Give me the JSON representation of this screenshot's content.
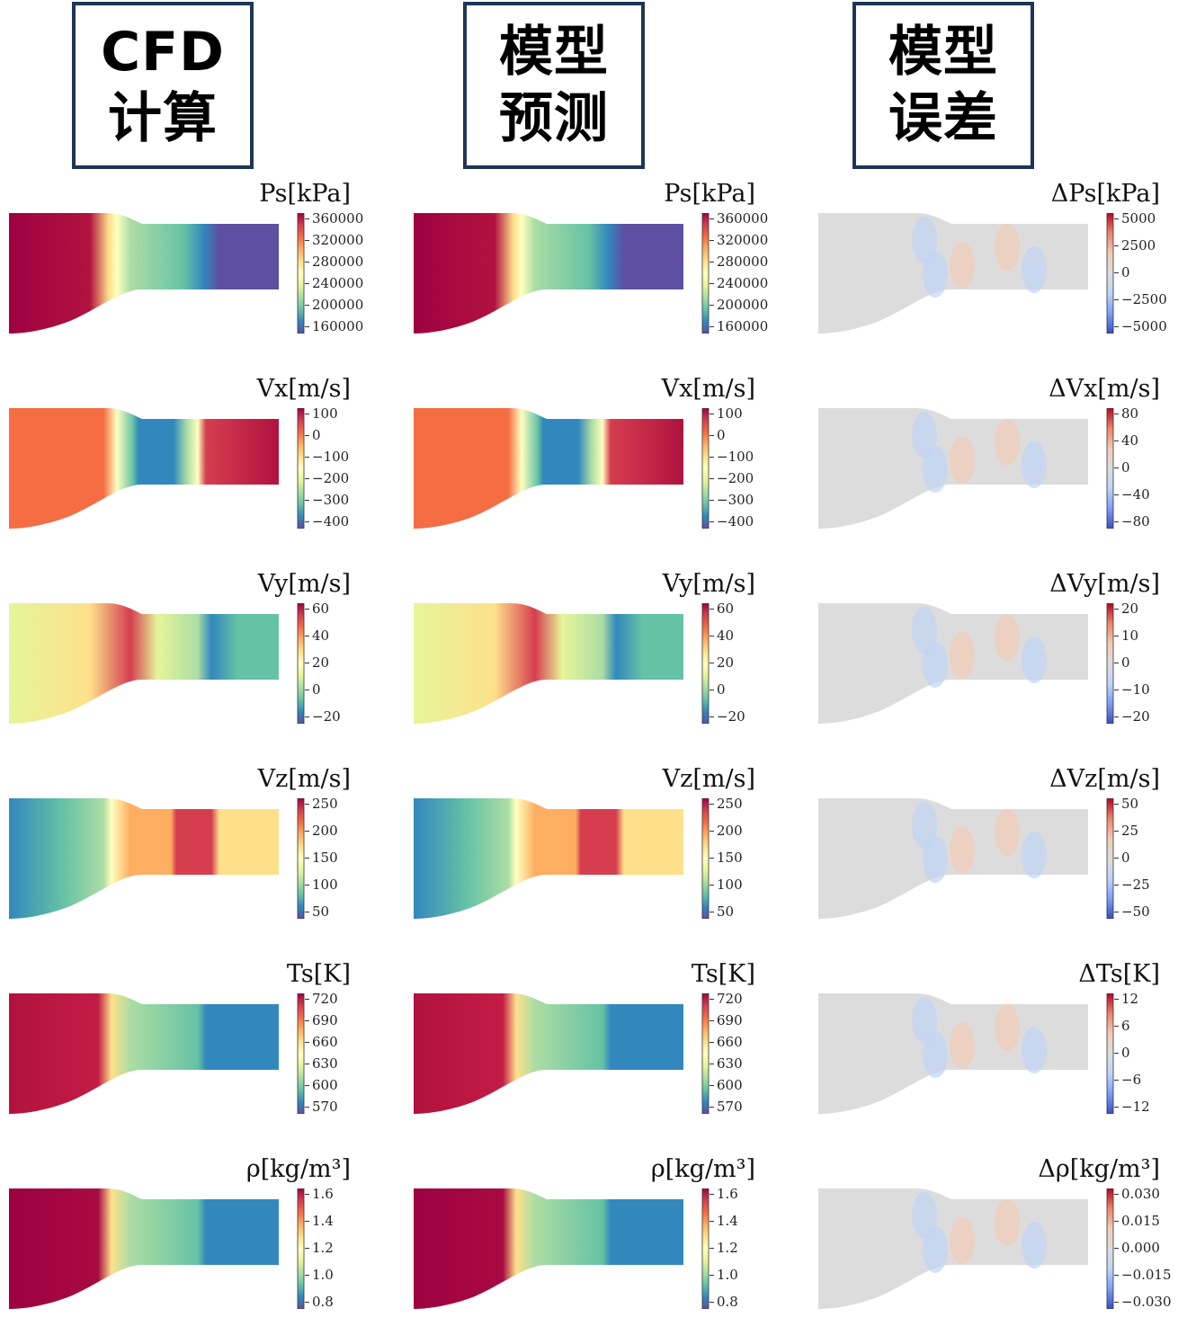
{
  "headers": [
    {
      "line1": "CFD",
      "line2": "计算"
    },
    {
      "line1": "模型",
      "line2": "预测"
    },
    {
      "line1": "模型",
      "line2": "误差"
    }
  ],
  "colors": {
    "header_border": "#1f3556",
    "colormap": [
      "#5e4fa2",
      "#3288bd",
      "#66c2a5",
      "#abdda4",
      "#e6f598",
      "#ffffbf",
      "#fee08b",
      "#fdae61",
      "#f46d43",
      "#d53e4f",
      "#9e0142"
    ],
    "diverging": [
      "#3b4cc0",
      "#7b9ff9",
      "#c0d4f5",
      "#dddddd",
      "#f2cbb7",
      "#ee8468",
      "#b40426"
    ],
    "error_background": "#dcdcdc"
  },
  "rows": [
    {
      "quantity": "Ps",
      "labels": [
        "Ps[kPa]",
        "Ps[kPa]",
        "ΔPs[kPa]"
      ],
      "ticks": [
        [
          "360000",
          "320000",
          "280000",
          "240000",
          "200000",
          "160000"
        ],
        [
          "360000",
          "320000",
          "280000",
          "240000",
          "200000",
          "160000"
        ],
        [
          "5000",
          "2500",
          "0",
          "−2500",
          "−5000"
        ]
      ]
    },
    {
      "quantity": "Vx",
      "labels": [
        "Vx[m/s]",
        "Vx[m/s]",
        "ΔVx[m/s]"
      ],
      "ticks": [
        [
          "100",
          "0",
          "−100",
          "−200",
          "−300",
          "−400"
        ],
        [
          "100",
          "0",
          "−100",
          "−200",
          "−300",
          "−400"
        ],
        [
          "80",
          "40",
          "0",
          "−40",
          "−80"
        ]
      ]
    },
    {
      "quantity": "Vy",
      "labels": [
        "Vy[m/s]",
        "Vy[m/s]",
        "ΔVy[m/s]"
      ],
      "ticks": [
        [
          "60",
          "40",
          "20",
          "0",
          "−20"
        ],
        [
          "60",
          "40",
          "20",
          "0",
          "−20"
        ],
        [
          "20",
          "10",
          "0",
          "−10",
          "−20"
        ]
      ]
    },
    {
      "quantity": "Vz",
      "labels": [
        "Vz[m/s]",
        "Vz[m/s]",
        "ΔVz[m/s]"
      ],
      "ticks": [
        [
          "250",
          "200",
          "150",
          "100",
          "50"
        ],
        [
          "250",
          "200",
          "150",
          "100",
          "50"
        ],
        [
          "50",
          "25",
          "0",
          "−25",
          "−50"
        ]
      ]
    },
    {
      "quantity": "Ts",
      "labels": [
        "Ts[K]",
        "Ts[K]",
        "ΔTs[K]"
      ],
      "ticks": [
        [
          "720",
          "690",
          "660",
          "630",
          "600",
          "570"
        ],
        [
          "720",
          "690",
          "660",
          "630",
          "600",
          "570"
        ],
        [
          "12",
          "6",
          "0",
          "−6",
          "−12"
        ]
      ]
    },
    {
      "quantity": "rho",
      "labels": [
        "ρ[kg/m³]",
        "ρ[kg/m³]",
        "Δρ[kg/m³]"
      ],
      "ticks": [
        [
          "1.6",
          "1.4",
          "1.2",
          "1.0",
          "0.8"
        ],
        [
          "1.6",
          "1.4",
          "1.2",
          "1.0",
          "0.8"
        ],
        [
          "0.030",
          "0.015",
          "0.000",
          "−0.015",
          "−0.030"
        ]
      ]
    }
  ]
}
